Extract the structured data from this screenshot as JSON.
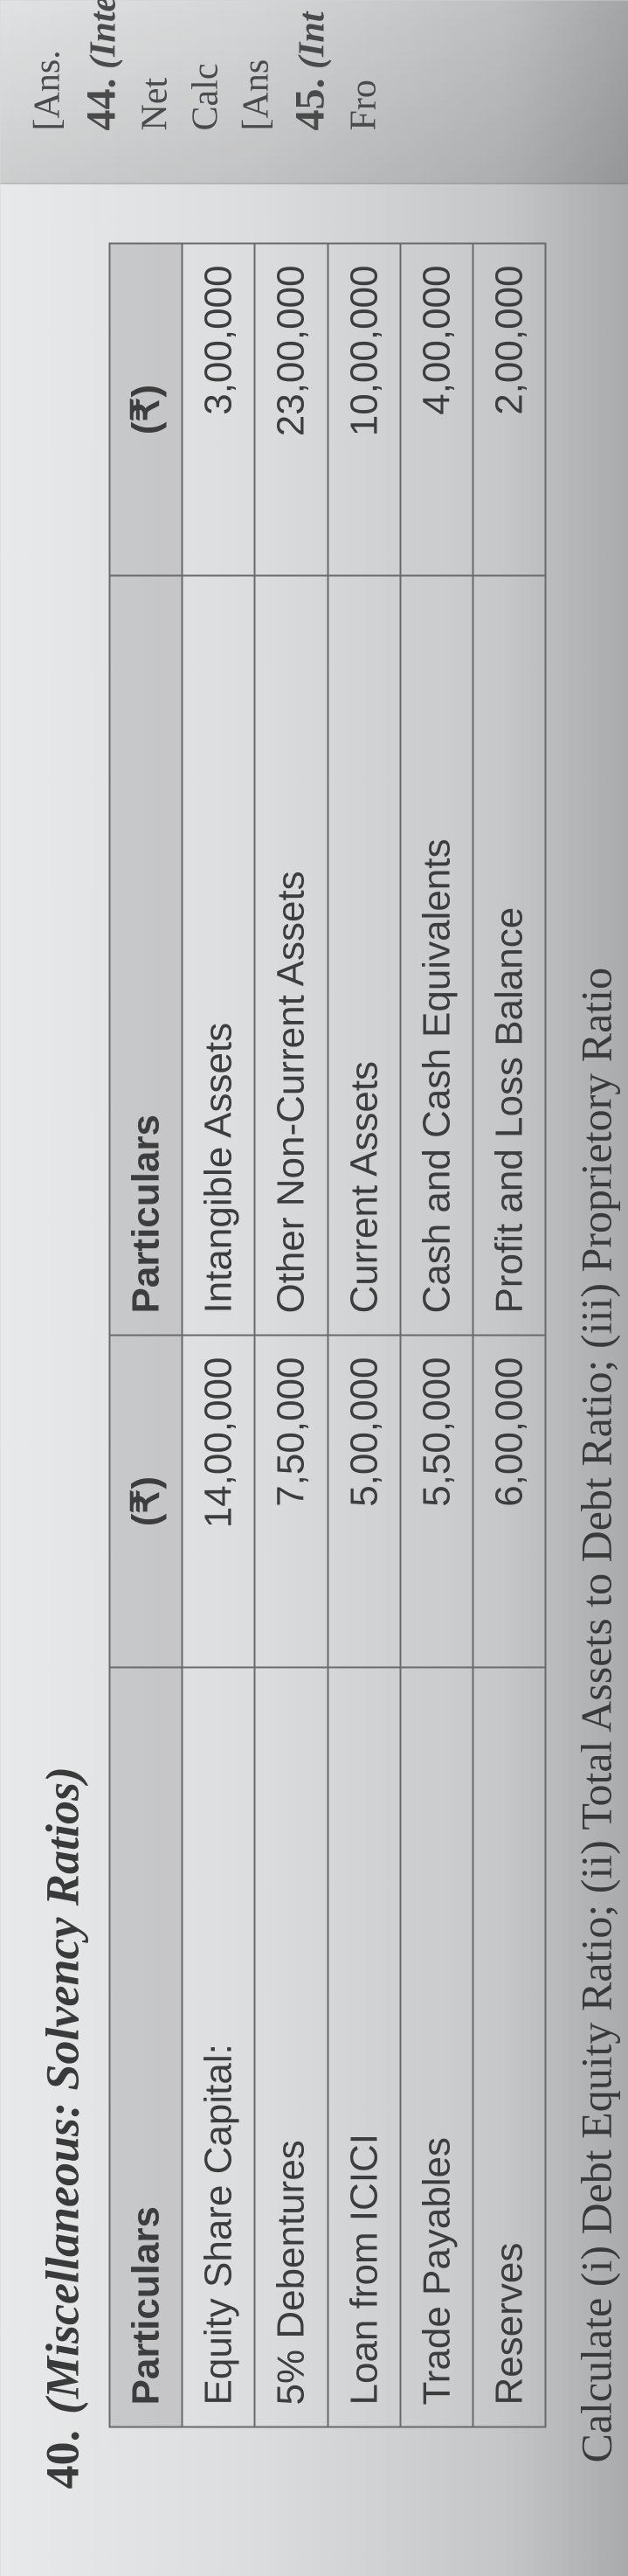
{
  "question": {
    "number": "40.",
    "title": "(Miscellaneous: Solvency Ratios)"
  },
  "table": {
    "headers": {
      "particulars_left": "Particulars",
      "amount_left": "(₹)",
      "particulars_right": "Particulars",
      "amount_right": "(₹)"
    },
    "rows": [
      {
        "pl": "Equity Share Capital:",
        "al": "14,00,000",
        "pr": "Intangible Assets",
        "ar": "3,00,000"
      },
      {
        "pl": "5% Debentures",
        "al": "7,50,000",
        "pr": "Other Non-Current Assets",
        "ar": "23,00,000"
      },
      {
        "pl": "Loan from ICICI",
        "al": "5,00,000",
        "pr": "Current Assets",
        "ar": "10,00,000"
      },
      {
        "pl": "Trade Payables",
        "al": "5,50,000",
        "pr": "Cash and Cash Equivalents",
        "ar": "4,00,000"
      },
      {
        "pl": "Reserves",
        "al": "6,00,000",
        "pr": "Profit and Loss Balance",
        "ar": "2,00,000"
      }
    ]
  },
  "instruction": "Calculate (i) Debt Equity Ratio; (ii) Total Assets to Debt Ratio; (iii) Proprietory Ratio",
  "edge": {
    "ans_top": "[Ans.",
    "q44": "44.",
    "q44_title": "(Inter",
    "net": "Net",
    "calc": "Calc",
    "ans_mid": "[Ans",
    "q45": "45.",
    "q45_title": "(Int",
    "fro": "Fro"
  }
}
